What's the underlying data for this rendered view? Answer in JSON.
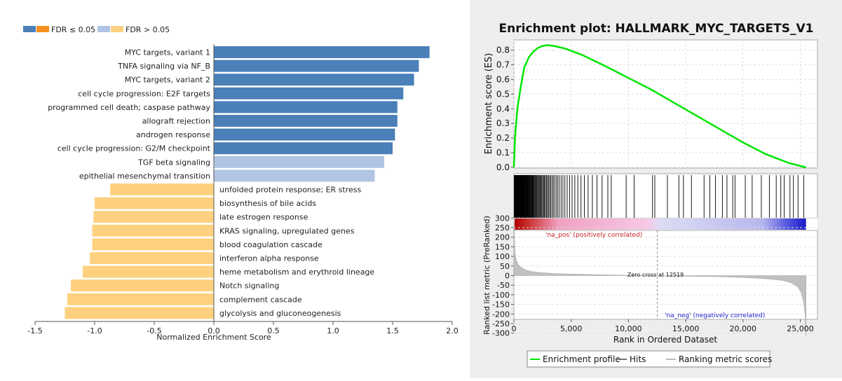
{
  "chart_data": [
    {
      "type": "bar",
      "orientation": "horizontal",
      "xlabel": "Normalized Enrichment Score",
      "xlim": [
        -1.5,
        2.0
      ],
      "xticks": [
        "-1.5",
        "-1.0",
        "-0.5",
        "0.0",
        "0.5",
        "1.0",
        "1.5",
        "2.0"
      ],
      "legend": {
        "placement": "top-left",
        "entries": [
          {
            "label": "FDR ≤ 0.05",
            "colors": [
              "#4a7fb8",
              "#f5901e"
            ]
          },
          {
            "label": "FDR > 0.05",
            "colors": [
              "#b1c4e3",
              "#fdd17f"
            ]
          }
        ]
      },
      "categories": [
        "MYC targets, variant 1",
        "TNFA signaling via NF_B",
        "MYC targets, variant 2",
        "cell cycle progression: E2F targets",
        "programmed cell death; caspase pathway",
        "allograft rejection",
        "androgen response",
        "cell cycle progression: G2/M checkpoint",
        "TGF beta signaling",
        "epithelial mesenchymal transition",
        "unfolded protein response; ER stress",
        "biosynthesis of bile acids",
        "late estrogen response",
        "KRAS signaling, upregulated genes",
        "blood coagulation cascade",
        "interferon alpha response",
        "heme metabolism and erythroid lineage",
        "Notch signaling",
        "complement cascade",
        "glycolysis and gluconeogenesis"
      ],
      "values": [
        1.81,
        1.72,
        1.68,
        1.59,
        1.54,
        1.54,
        1.52,
        1.5,
        1.43,
        1.35,
        -0.87,
        -1.0,
        -1.01,
        -1.02,
        -1.02,
        -1.04,
        -1.1,
        -1.2,
        -1.23,
        -1.25
      ],
      "fdr_significant": [
        true,
        true,
        true,
        true,
        true,
        true,
        true,
        true,
        false,
        false,
        false,
        false,
        false,
        false,
        false,
        false,
        false,
        false,
        false,
        false
      ],
      "colors": {
        "pos_sig": "#4a7fb8",
        "pos_nonsig": "#b1c4e3",
        "neg_sig": "#f5901e",
        "neg_nonsig": "#fdd17f"
      }
    },
    {
      "type": "line",
      "title": "Enrichment plot: HALLMARK_MYC_TARGETS_V1",
      "es_panel": {
        "ylabel": "Enrichment score (ES)",
        "ylim": [
          0.0,
          0.85
        ],
        "yticks": [
          "0.0",
          "0.1",
          "0.2",
          "0.3",
          "0.4",
          "0.5",
          "0.6",
          "0.7",
          "0.8"
        ],
        "color": "#00e600",
        "x": [
          0,
          100,
          300,
          600,
          900,
          1300,
          1700,
          2100,
          2500,
          2900,
          3500,
          4500,
          6000,
          8000,
          10000,
          12000,
          14000,
          16000,
          18000,
          20000,
          22000,
          24000,
          25500
        ],
        "y": [
          0.0,
          0.2,
          0.4,
          0.55,
          0.68,
          0.75,
          0.79,
          0.815,
          0.828,
          0.834,
          0.828,
          0.81,
          0.765,
          0.69,
          0.61,
          0.53,
          0.44,
          0.35,
          0.26,
          0.17,
          0.09,
          0.03,
          0.0
        ]
      },
      "hits": [
        30,
        50,
        70,
        90,
        110,
        130,
        150,
        170,
        190,
        210,
        230,
        250,
        270,
        290,
        310,
        330,
        350,
        370,
        390,
        410,
        430,
        450,
        470,
        490,
        520,
        550,
        580,
        610,
        640,
        670,
        700,
        730,
        760,
        790,
        820,
        850,
        880,
        910,
        940,
        980,
        1020,
        1060,
        1100,
        1140,
        1180,
        1220,
        1260,
        1300,
        1350,
        1400,
        1450,
        1500,
        1550,
        1600,
        1650,
        1700,
        1760,
        1820,
        1880,
        1940,
        2000,
        2070,
        2140,
        2210,
        2280,
        2350,
        2430,
        2510,
        2590,
        2670,
        2750,
        2840,
        2930,
        3020,
        3120,
        3220,
        3330,
        3440,
        3560,
        3690,
        3820,
        3960,
        4120,
        4280,
        4450,
        4650,
        4860,
        5080,
        5320,
        5580,
        5860,
        6150,
        6480,
        6850,
        7250,
        7700,
        8200,
        8500,
        9800,
        10500,
        12100,
        12300,
        13400,
        14400,
        14800,
        15500,
        16600,
        17100,
        17600,
        18200,
        18600,
        19100,
        19300,
        20200,
        20800,
        21600,
        22300,
        22900,
        23300,
        23600,
        24100,
        24400,
        24800,
        25300
      ],
      "heat": {
        "pos_label": "'na_pos' (positively correlated)",
        "neg_label": "'na_neg' (negatively correlated)"
      },
      "metric_panel": {
        "ylabel": "Ranked list metric (PreRanked)",
        "ylim": [
          -320,
          330
        ],
        "yticks": [
          "300",
          "250",
          "200",
          "150",
          "100",
          "50",
          "0",
          "-50",
          "-100",
          "-150",
          "-200",
          "-250",
          "-300"
        ],
        "zero_cross": "Zero cross at 12519",
        "zero_cross_value": 12519,
        "x": [
          0,
          100,
          200,
          400,
          700,
          1000,
          1500,
          2200,
          3500,
          5000,
          7000,
          10000,
          12519,
          15000,
          18000,
          20000,
          22000,
          23500,
          24300,
          24800,
          25100,
          25300,
          25450,
          25500
        ],
        "y": [
          300,
          120,
          80,
          55,
          40,
          30,
          22,
          16,
          11,
          8,
          5,
          2,
          0,
          -3,
          -6,
          -10,
          -16,
          -25,
          -40,
          -60,
          -90,
          -140,
          -220,
          -320
        ]
      },
      "xlabel": "Rank in Ordered Dataset",
      "xlim": [
        0,
        26500
      ],
      "xticks": [
        "0",
        "5,000",
        "10,000",
        "15,000",
        "20,000",
        "25,000"
      ],
      "legend": {
        "placement": "bottom-center",
        "entries": [
          "Enrichment profile",
          "Hits",
          "Ranking metric scores"
        ]
      }
    }
  ]
}
